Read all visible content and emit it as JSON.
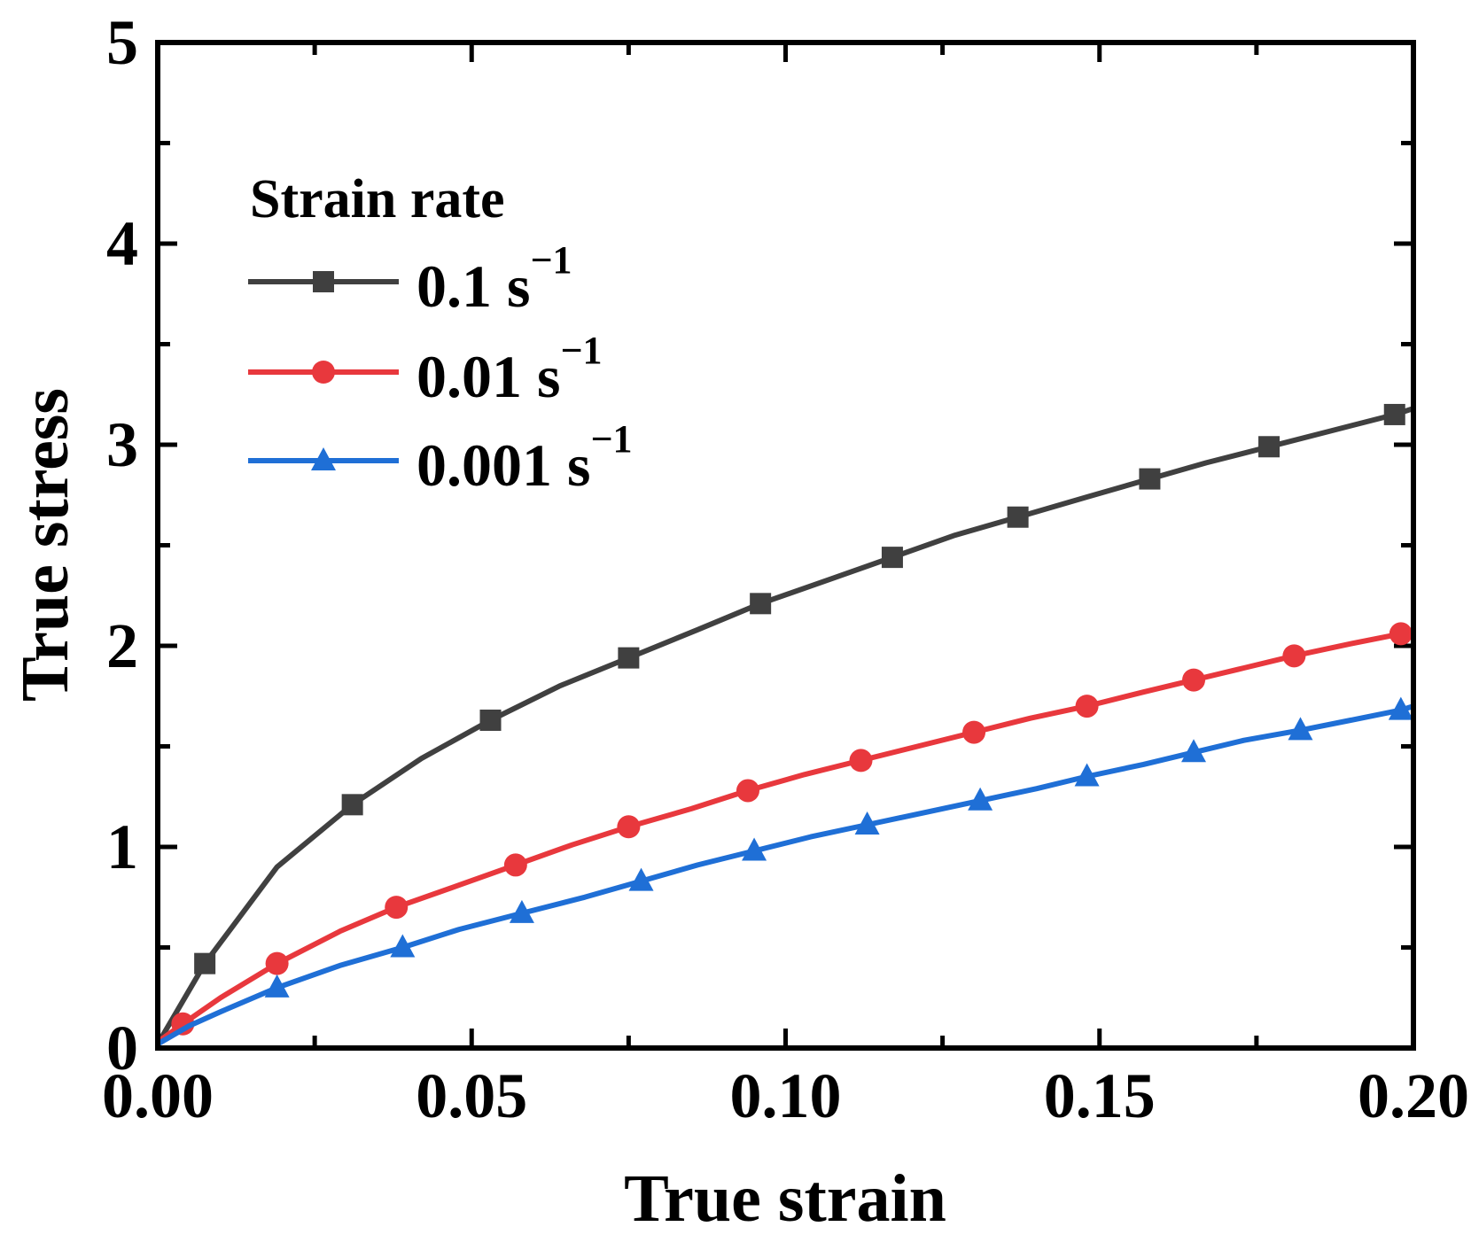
{
  "chart_data": {
    "type": "line",
    "title": "",
    "xlabel": "True strain",
    "ylabel": "True stress",
    "xlim": [
      0,
      0.2
    ],
    "ylim": [
      0,
      5
    ],
    "x_ticks": [
      0,
      0.05,
      0.1,
      0.15,
      0.2
    ],
    "x_tick_labels": [
      "0.00",
      "0.05",
      "0.10",
      "0.15",
      "0.20"
    ],
    "y_ticks": [
      0,
      1,
      2,
      3,
      4,
      5
    ],
    "y_tick_labels": [
      "0",
      "1",
      "2",
      "3",
      "4",
      "5"
    ],
    "legend": {
      "title": "Strain rate",
      "position": "top-left"
    },
    "series": [
      {
        "name": "0.1 s",
        "unit_exponent": "−1",
        "color": "#404040",
        "marker": "square",
        "line_x": [
          0,
          0.0075,
          0.019,
          0.031,
          0.042,
          0.053,
          0.064,
          0.075,
          0.086,
          0.096,
          0.107,
          0.117,
          0.127,
          0.137,
          0.148,
          0.158,
          0.167,
          0.177,
          0.187,
          0.197,
          0.2
        ],
        "line_y": [
          0.02,
          0.42,
          0.9,
          1.21,
          1.44,
          1.63,
          1.8,
          1.94,
          2.08,
          2.21,
          2.33,
          2.44,
          2.55,
          2.64,
          2.74,
          2.83,
          2.91,
          2.99,
          3.07,
          3.15,
          3.18
        ],
        "marker_x": [
          0.0075,
          0.031,
          0.053,
          0.075,
          0.096,
          0.117,
          0.137,
          0.158,
          0.177,
          0.197
        ],
        "marker_y": [
          0.42,
          1.21,
          1.63,
          1.94,
          2.21,
          2.44,
          2.64,
          2.83,
          2.99,
          3.15
        ]
      },
      {
        "name": "0.01 s",
        "unit_exponent": "−1",
        "color": "#e8383d",
        "marker": "circle",
        "line_x": [
          0,
          0.004,
          0.01,
          0.019,
          0.029,
          0.038,
          0.048,
          0.057,
          0.066,
          0.075,
          0.085,
          0.094,
          0.103,
          0.112,
          0.121,
          0.13,
          0.139,
          0.148,
          0.157,
          0.165,
          0.173,
          0.181,
          0.19,
          0.198,
          0.2
        ],
        "line_y": [
          0.03,
          0.12,
          0.25,
          0.42,
          0.58,
          0.7,
          0.81,
          0.91,
          1.01,
          1.1,
          1.19,
          1.28,
          1.36,
          1.43,
          1.5,
          1.57,
          1.64,
          1.7,
          1.77,
          1.83,
          1.89,
          1.95,
          2.01,
          2.06,
          2.08
        ],
        "marker_x": [
          0.004,
          0.019,
          0.038,
          0.057,
          0.075,
          0.094,
          0.112,
          0.13,
          0.148,
          0.165,
          0.181,
          0.198
        ],
        "marker_y": [
          0.12,
          0.42,
          0.7,
          0.91,
          1.1,
          1.28,
          1.43,
          1.57,
          1.7,
          1.83,
          1.95,
          2.06
        ]
      },
      {
        "name": "0.001 s",
        "unit_exponent": "−1",
        "color": "#1f6fd6",
        "marker": "triangle",
        "line_x": [
          0,
          0.005,
          0.01,
          0.019,
          0.029,
          0.039,
          0.048,
          0.058,
          0.068,
          0.077,
          0.086,
          0.095,
          0.104,
          0.113,
          0.122,
          0.131,
          0.14,
          0.148,
          0.157,
          0.165,
          0.173,
          0.182,
          0.19,
          0.198,
          0.2
        ],
        "line_y": [
          0.02,
          0.11,
          0.18,
          0.3,
          0.41,
          0.5,
          0.59,
          0.67,
          0.75,
          0.83,
          0.91,
          0.98,
          1.05,
          1.11,
          1.17,
          1.23,
          1.29,
          1.35,
          1.41,
          1.47,
          1.53,
          1.58,
          1.63,
          1.68,
          1.7
        ],
        "marker_x": [
          0.019,
          0.039,
          0.058,
          0.077,
          0.095,
          0.113,
          0.131,
          0.148,
          0.165,
          0.182,
          0.198
        ],
        "marker_y": [
          0.3,
          0.5,
          0.67,
          0.83,
          0.98,
          1.11,
          1.23,
          1.35,
          1.47,
          1.58,
          1.68
        ]
      }
    ]
  }
}
